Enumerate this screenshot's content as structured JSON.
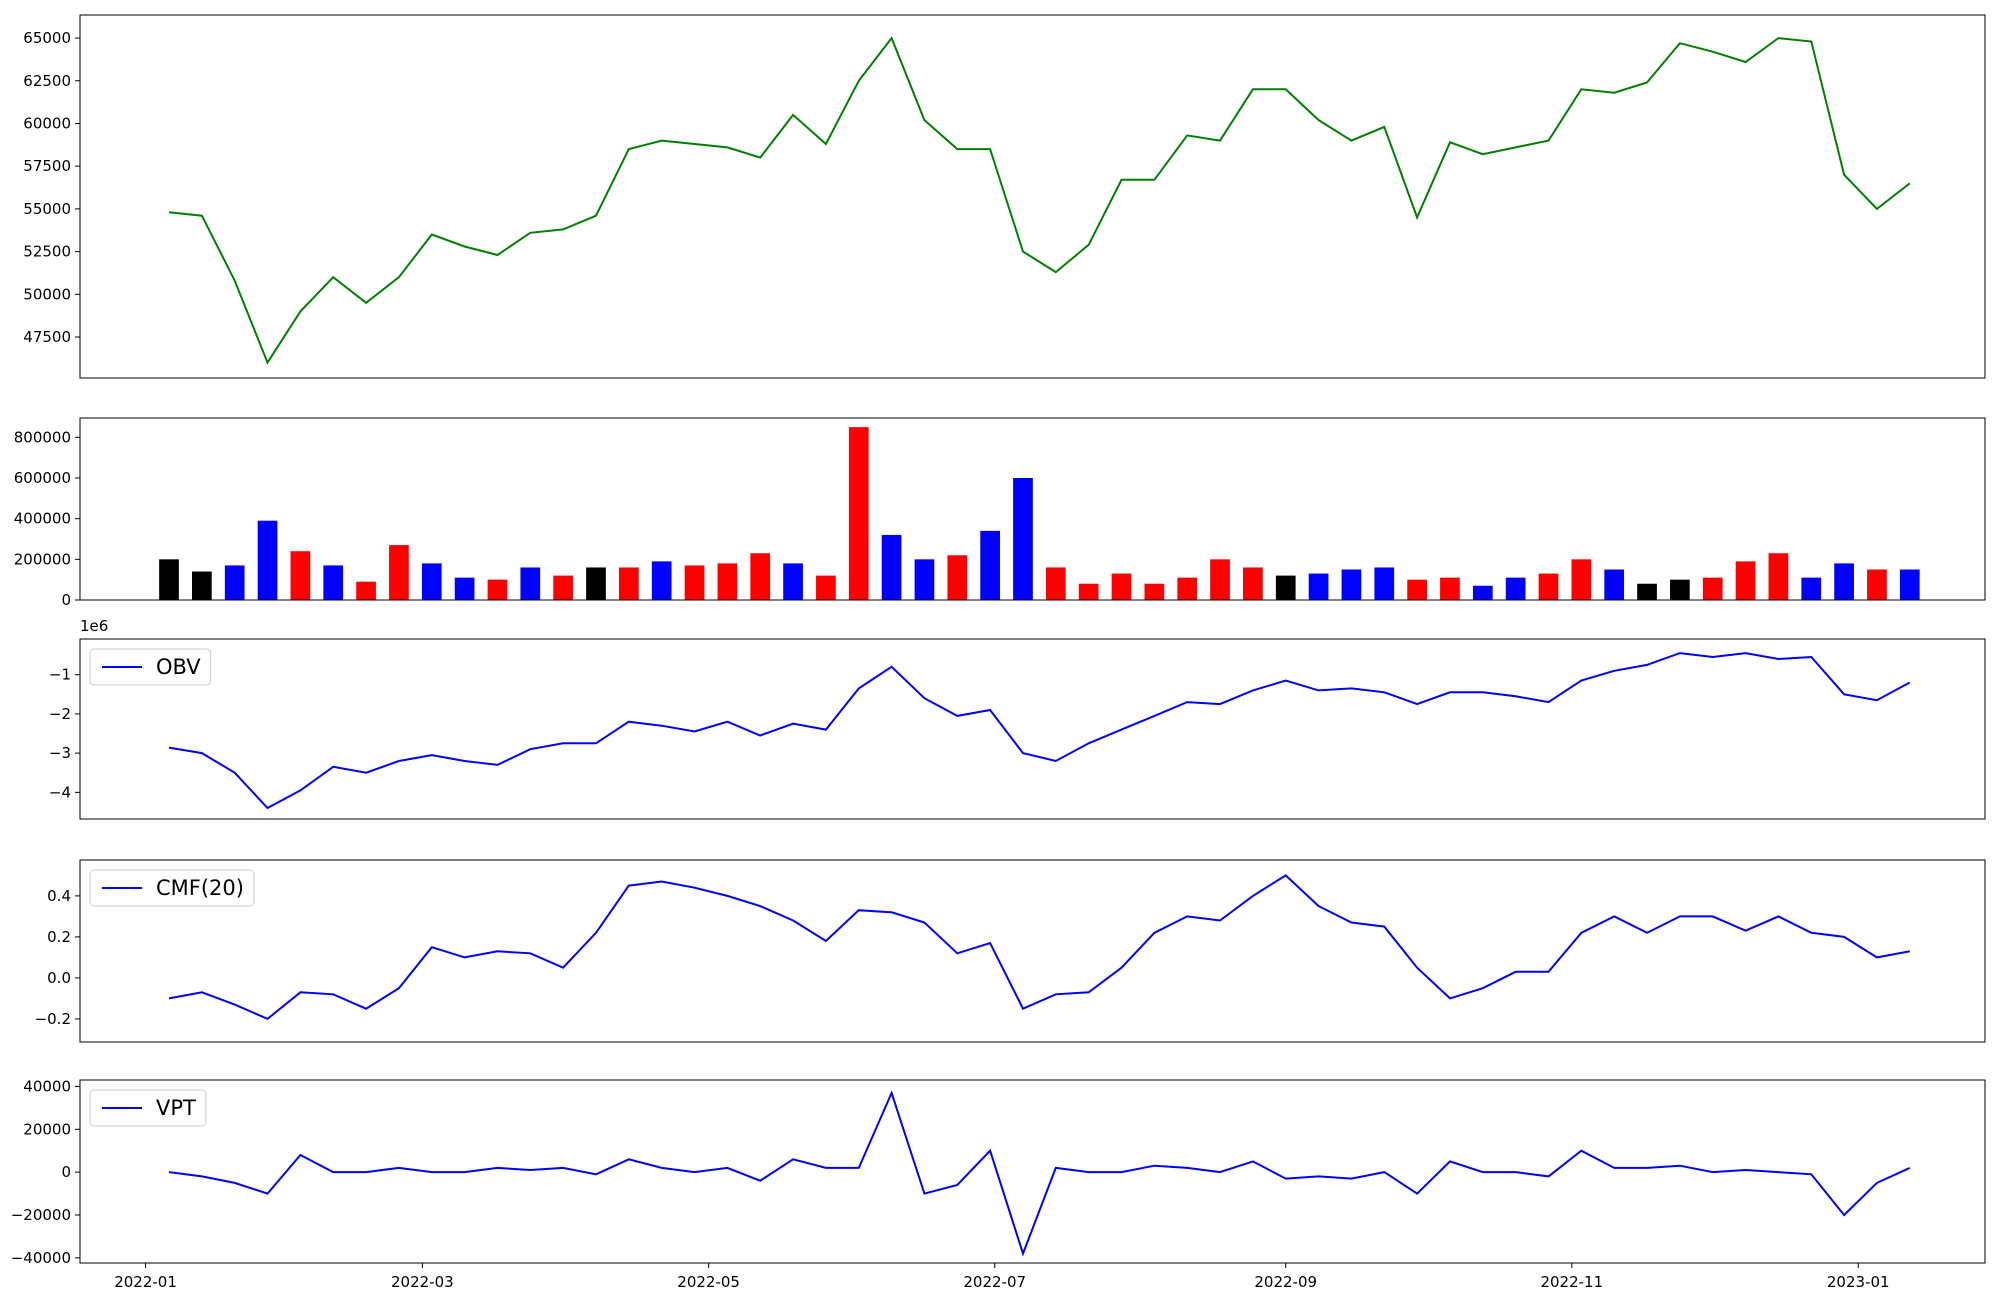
{
  "chart_data": [
    {
      "type": "line",
      "xlim": [
        -2.71,
        55.29
      ],
      "ylim": [
        45100,
        66350
      ],
      "yticks": [
        47500,
        50000,
        52500,
        55000,
        57500,
        60000,
        62500,
        65000
      ],
      "series": [
        {
          "color": "green",
          "values": [
            54800,
            54600,
            50800,
            46000,
            49000,
            51000,
            49500,
            51000,
            53500,
            52800,
            52300,
            53600,
            53800,
            54600,
            58500,
            59000,
            58800,
            58600,
            58000,
            60500,
            58800,
            62500,
            65000,
            60200,
            58500,
            58500,
            52500,
            51300,
            52900,
            56700,
            56700,
            59300,
            59000,
            62000,
            62000,
            60200,
            59000,
            59800,
            54500,
            58900,
            58200,
            58600,
            59000,
            62000,
            61800,
            62400,
            64700,
            64200,
            63600,
            65000,
            64800,
            57000,
            55000,
            56500
          ]
        }
      ]
    },
    {
      "type": "bar",
      "xlim": [
        -2.71,
        55.29
      ],
      "ylim": [
        0,
        895000
      ],
      "yticks": [
        0,
        200000,
        400000,
        600000,
        800000
      ],
      "values": [
        200000,
        140000,
        170000,
        390000,
        240000,
        170000,
        90000,
        270000,
        180000,
        110000,
        100000,
        160000,
        120000,
        160000,
        160000,
        190000,
        170000,
        180000,
        230000,
        180000,
        120000,
        850000,
        320000,
        200000,
        220000,
        340000,
        600000,
        160000,
        80000,
        130000,
        80000,
        110000,
        200000,
        160000,
        120000,
        130000,
        150000,
        160000,
        100000,
        110000,
        70000,
        110000,
        130000,
        200000,
        150000,
        80000,
        100000,
        110000,
        190000,
        230000,
        110000,
        180000,
        150000,
        150000
      ],
      "colors": [
        "black",
        "black",
        "blue",
        "blue",
        "red",
        "blue",
        "red",
        "red",
        "blue",
        "blue",
        "red",
        "blue",
        "red",
        "black",
        "red",
        "blue",
        "red",
        "red",
        "red",
        "blue",
        "red",
        "red",
        "blue",
        "blue",
        "red",
        "blue",
        "blue",
        "red",
        "red",
        "red",
        "red",
        "red",
        "red",
        "red",
        "black",
        "blue",
        "blue",
        "blue",
        "red",
        "red",
        "blue",
        "blue",
        "red",
        "red",
        "blue",
        "black",
        "black",
        "red",
        "red",
        "red",
        "blue",
        "blue",
        "red",
        "blue"
      ]
    },
    {
      "type": "line",
      "xlim": [
        -2.71,
        55.29
      ],
      "ylim": [
        -4.68,
        -0.09
      ],
      "offset_label": "1e6",
      "legend": "upper left",
      "yticks": [
        {
          "value": -4,
          "label": "−4"
        },
        {
          "value": -3,
          "label": "−3"
        },
        {
          "value": -2,
          "label": "−2"
        },
        {
          "value": -1,
          "label": "−1"
        }
      ],
      "series": [
        {
          "name": "OBV",
          "color": "blue",
          "values": [
            -2.86,
            -3.0,
            -3.5,
            -4.4,
            -3.95,
            -3.35,
            -3.5,
            -3.2,
            -3.05,
            -3.2,
            -3.3,
            -2.9,
            -2.75,
            -2.75,
            -2.2,
            -2.3,
            -2.45,
            -2.2,
            -2.55,
            -2.25,
            -2.4,
            -1.35,
            -0.8,
            -1.6,
            -2.05,
            -1.9,
            -3.0,
            -3.2,
            -2.75,
            -2.4,
            -2.05,
            -1.7,
            -1.75,
            -1.4,
            -1.15,
            -1.4,
            -1.35,
            -1.45,
            -1.75,
            -1.45,
            -1.45,
            -1.55,
            -1.7,
            -1.15,
            -0.9,
            -0.75,
            -0.45,
            -0.55,
            -0.45,
            -0.6,
            -0.55,
            -1.5,
            -1.65,
            -1.2
          ]
        }
      ]
    },
    {
      "type": "line",
      "xlim": [
        -2.71,
        55.29
      ],
      "ylim": [
        -0.3125,
        0.575
      ],
      "legend": "upper left",
      "yticks": [
        {
          "value": -0.2,
          "label": "−0.2"
        },
        {
          "value": 0,
          "label": "0.0"
        },
        0.2,
        0.4
      ],
      "series": [
        {
          "name": "CMF(20)",
          "color": "blue",
          "values": [
            -0.1,
            -0.07,
            -0.13,
            -0.2,
            -0.07,
            -0.08,
            -0.15,
            -0.05,
            0.15,
            0.1,
            0.13,
            0.12,
            0.05,
            0.22,
            0.45,
            0.47,
            0.44,
            0.4,
            0.35,
            0.28,
            0.18,
            0.33,
            0.32,
            0.27,
            0.12,
            0.17,
            -0.15,
            -0.08,
            -0.07,
            0.05,
            0.22,
            0.3,
            0.28,
            0.4,
            0.5,
            0.35,
            0.27,
            0.25,
            0.05,
            -0.1,
            -0.05,
            0.03,
            0.03,
            0.22,
            0.3,
            0.22,
            0.3,
            0.3,
            0.23,
            0.3,
            0.22,
            0.2,
            0.1,
            0.13
          ]
        }
      ]
    },
    {
      "type": "line",
      "xlim": [
        -2.71,
        55.29
      ],
      "ylim": [
        -42400,
        43000
      ],
      "legend": "upper left",
      "yticks": [
        {
          "value": -40000,
          "label": "−40000"
        },
        {
          "value": -20000,
          "label": "−20000"
        },
        0,
        20000,
        40000
      ],
      "xticks": [
        {
          "value": -0.714,
          "label": "2022-01"
        },
        {
          "value": 7.714,
          "label": "2022-03"
        },
        {
          "value": 16.43,
          "label": "2022-05"
        },
        {
          "value": 25.14,
          "label": "2022-07"
        },
        {
          "value": 34,
          "label": "2022-09"
        },
        {
          "value": 42.71,
          "label": "2022-11"
        },
        {
          "value": 51.43,
          "label": "2023-01"
        }
      ],
      "series": [
        {
          "name": "VPT",
          "color": "blue",
          "values": [
            0,
            -2000,
            -5000,
            -10000,
            8000,
            0,
            0,
            2000,
            0,
            0,
            2000,
            1000,
            2000,
            -1000,
            6000,
            2000,
            0,
            2000,
            -4000,
            6000,
            2000,
            2000,
            37000,
            -10000,
            -6000,
            10000,
            -38000,
            2000,
            0,
            0,
            3000,
            2000,
            0,
            5000,
            -3000,
            -2000,
            -3000,
            0,
            -10000,
            5000,
            0,
            0,
            -2000,
            10000,
            2000,
            2000,
            3000,
            0,
            1000,
            0,
            -1000,
            -20000,
            -5000,
            2000
          ]
        }
      ]
    }
  ]
}
